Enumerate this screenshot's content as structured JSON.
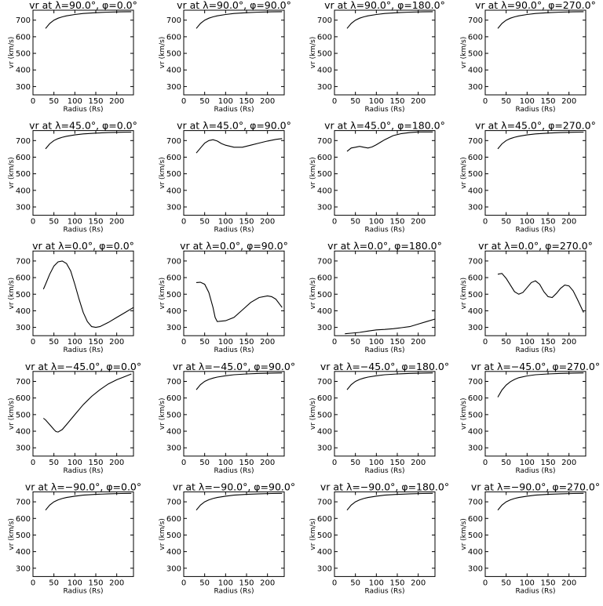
{
  "chart_data": [
    {
      "type": "line",
      "title": "vr at λ=90.0°, φ=0.0°",
      "xlabel": "Radius (Rs)",
      "ylabel": "vr (km/s)",
      "xlim": [
        0,
        240
      ],
      "ylim": [
        250,
        760
      ],
      "x": [
        30,
        40,
        50,
        60,
        70,
        80,
        100,
        120,
        150,
        180,
        210,
        235
      ],
      "y": [
        650,
        680,
        700,
        712,
        720,
        726,
        734,
        740,
        745,
        748,
        750,
        751
      ]
    },
    {
      "type": "line",
      "title": "vr at λ=90.0°, φ=90.0°",
      "xlabel": "Radius (Rs)",
      "ylabel": "vr (km/s)",
      "xlim": [
        0,
        240
      ],
      "ylim": [
        250,
        760
      ],
      "x": [
        30,
        40,
        50,
        60,
        70,
        80,
        100,
        120,
        150,
        180,
        210,
        235
      ],
      "y": [
        650,
        680,
        700,
        712,
        720,
        726,
        734,
        740,
        745,
        748,
        750,
        751
      ]
    },
    {
      "type": "line",
      "title": "vr at λ=90.0°, φ=180.0°",
      "xlabel": "Radius (Rs)",
      "ylabel": "vr (km/s)",
      "xlim": [
        0,
        240
      ],
      "ylim": [
        250,
        760
      ],
      "x": [
        30,
        40,
        50,
        60,
        70,
        80,
        100,
        120,
        150,
        180,
        210,
        235
      ],
      "y": [
        650,
        680,
        700,
        712,
        720,
        726,
        734,
        740,
        745,
        748,
        750,
        751
      ]
    },
    {
      "type": "line",
      "title": "vr at λ=90.0°, φ=270.0°",
      "xlabel": "Radius (Rs)",
      "ylabel": "vr (km/s)",
      "xlim": [
        0,
        240
      ],
      "ylim": [
        250,
        760
      ],
      "x": [
        30,
        40,
        50,
        60,
        70,
        80,
        100,
        120,
        150,
        180,
        210,
        235
      ],
      "y": [
        650,
        680,
        700,
        712,
        720,
        726,
        734,
        740,
        745,
        748,
        750,
        751
      ]
    },
    {
      "type": "line",
      "title": "vr at λ=45.0°, φ=0.0°",
      "xlabel": "Radius (Rs)",
      "ylabel": "vr (km/s)",
      "xlim": [
        0,
        240
      ],
      "ylim": [
        250,
        760
      ],
      "x": [
        30,
        40,
        50,
        60,
        70,
        80,
        100,
        120,
        150,
        180,
        210,
        235
      ],
      "y": [
        650,
        680,
        700,
        712,
        720,
        726,
        734,
        740,
        745,
        748,
        750,
        751
      ]
    },
    {
      "type": "line",
      "title": "vr at λ=45.0°, φ=90.0°",
      "xlabel": "Radius (Rs)",
      "ylabel": "vr (km/s)",
      "xlim": [
        0,
        240
      ],
      "ylim": [
        250,
        760
      ],
      "x": [
        30,
        40,
        50,
        60,
        70,
        80,
        90,
        100,
        120,
        140,
        160,
        180,
        200,
        220,
        235
      ],
      "y": [
        625,
        655,
        685,
        700,
        705,
        697,
        682,
        672,
        660,
        660,
        672,
        685,
        697,
        707,
        712
      ]
    },
    {
      "type": "line",
      "title": "vr at λ=45.0°, φ=180.0°",
      "xlabel": "Radius (Rs)",
      "ylabel": "vr (km/s)",
      "xlim": [
        0,
        240
      ],
      "ylim": [
        250,
        760
      ],
      "x": [
        30,
        40,
        50,
        60,
        70,
        80,
        90,
        100,
        110,
        120,
        140,
        160,
        180,
        200,
        220,
        235
      ],
      "y": [
        635,
        655,
        660,
        665,
        660,
        655,
        662,
        675,
        690,
        705,
        730,
        742,
        748,
        752,
        752,
        752
      ]
    },
    {
      "type": "line",
      "title": "vr at λ=45.0°, φ=270.0°",
      "xlabel": "Radius (Rs)",
      "ylabel": "vr (km/s)",
      "xlim": [
        0,
        240
      ],
      "ylim": [
        250,
        760
      ],
      "x": [
        30,
        40,
        50,
        60,
        70,
        80,
        100,
        120,
        150,
        180,
        210,
        235
      ],
      "y": [
        650,
        680,
        700,
        712,
        720,
        726,
        734,
        740,
        745,
        748,
        750,
        751
      ]
    },
    {
      "type": "line",
      "title": "vr at λ=0.0°, φ=0.0°",
      "xlabel": "Radius (Rs)",
      "ylabel": "vr (km/s)",
      "xlim": [
        0,
        240
      ],
      "ylim": [
        250,
        760
      ],
      "x": [
        25,
        30,
        40,
        50,
        60,
        70,
        80,
        90,
        100,
        110,
        120,
        130,
        140,
        150,
        160,
        180,
        200,
        220,
        240
      ],
      "y": [
        530,
        560,
        620,
        670,
        695,
        700,
        685,
        640,
        560,
        470,
        390,
        335,
        305,
        300,
        305,
        330,
        360,
        390,
        420
      ]
    },
    {
      "type": "line",
      "title": "vr at λ=0.0°, φ=90.0°",
      "xlabel": "Radius (Rs)",
      "ylabel": "vr (km/s)",
      "xlim": [
        0,
        240
      ],
      "ylim": [
        250,
        760
      ],
      "x": [
        30,
        40,
        50,
        60,
        70,
        75,
        80,
        100,
        120,
        140,
        160,
        180,
        200,
        210,
        220,
        235
      ],
      "y": [
        570,
        572,
        560,
        510,
        420,
        360,
        335,
        340,
        360,
        405,
        450,
        480,
        490,
        485,
        470,
        420
      ]
    },
    {
      "type": "line",
      "title": "vr at λ=0.0°, φ=180.0°",
      "xlabel": "Radius (Rs)",
      "ylabel": "vr (km/s)",
      "xlim": [
        0,
        240
      ],
      "ylim": [
        250,
        760
      ],
      "x": [
        25,
        40,
        60,
        80,
        100,
        120,
        140,
        160,
        180,
        200,
        220,
        240
      ],
      "y": [
        262,
        265,
        270,
        278,
        285,
        288,
        292,
        298,
        305,
        320,
        335,
        350
      ]
    },
    {
      "type": "line",
      "title": "vr at λ=0.0°, φ=270.0°",
      "xlabel": "Radius (Rs)",
      "ylabel": "vr (km/s)",
      "xlim": [
        0,
        240
      ],
      "ylim": [
        250,
        760
      ],
      "x": [
        30,
        40,
        50,
        60,
        70,
        80,
        90,
        100,
        110,
        120,
        130,
        140,
        150,
        160,
        170,
        180,
        190,
        200,
        210,
        220,
        235
      ],
      "y": [
        620,
        625,
        595,
        555,
        515,
        500,
        510,
        540,
        570,
        580,
        560,
        515,
        485,
        480,
        505,
        535,
        555,
        550,
        520,
        470,
        390
      ]
    },
    {
      "type": "line",
      "title": "vr at λ=−45.0°, φ=0.0°",
      "xlabel": "Radius (Rs)",
      "ylabel": "vr (km/s)",
      "xlim": [
        0,
        240
      ],
      "ylim": [
        250,
        760
      ],
      "x": [
        25,
        30,
        40,
        50,
        55,
        60,
        70,
        80,
        100,
        120,
        140,
        160,
        180,
        200,
        220,
        235
      ],
      "y": [
        478,
        468,
        440,
        410,
        398,
        395,
        410,
        440,
        500,
        560,
        610,
        650,
        685,
        710,
        730,
        745
      ]
    },
    {
      "type": "line",
      "title": "vr at λ=−45.0°, φ=90.0°",
      "xlabel": "Radius (Rs)",
      "ylabel": "vr (km/s)",
      "xlim": [
        0,
        240
      ],
      "ylim": [
        250,
        760
      ],
      "x": [
        30,
        40,
        50,
        60,
        70,
        80,
        100,
        120,
        150,
        180,
        210,
        235
      ],
      "y": [
        650,
        680,
        700,
        712,
        720,
        726,
        734,
        740,
        745,
        748,
        750,
        751
      ]
    },
    {
      "type": "line",
      "title": "vr at λ=−45.0°, φ=180.0°",
      "xlabel": "Radius (Rs)",
      "ylabel": "vr (km/s)",
      "xlim": [
        0,
        240
      ],
      "ylim": [
        250,
        760
      ],
      "x": [
        30,
        40,
        50,
        60,
        70,
        80,
        100,
        120,
        150,
        180,
        210,
        235
      ],
      "y": [
        650,
        680,
        700,
        712,
        720,
        726,
        734,
        740,
        745,
        748,
        750,
        751
      ]
    },
    {
      "type": "line",
      "title": "vr at λ=−45.0°, φ=270.0°",
      "xlabel": "Radius (Rs)",
      "ylabel": "vr (km/s)",
      "xlim": [
        0,
        240
      ],
      "ylim": [
        250,
        760
      ],
      "x": [
        30,
        40,
        50,
        60,
        70,
        80,
        100,
        120,
        150,
        180,
        210,
        235
      ],
      "y": [
        605,
        648,
        678,
        698,
        712,
        722,
        733,
        740,
        745,
        748,
        750,
        751
      ]
    },
    {
      "type": "line",
      "title": "vr at λ=−90.0°, φ=0.0°",
      "xlabel": "Radius (Rs)",
      "ylabel": "vr (km/s)",
      "xlim": [
        0,
        240
      ],
      "ylim": [
        250,
        760
      ],
      "x": [
        30,
        40,
        50,
        60,
        70,
        80,
        100,
        120,
        150,
        180,
        210,
        235
      ],
      "y": [
        650,
        680,
        700,
        712,
        720,
        726,
        734,
        740,
        745,
        748,
        750,
        751
      ]
    },
    {
      "type": "line",
      "title": "vr at λ=−90.0°, φ=90.0°",
      "xlabel": "Radius (Rs)",
      "ylabel": "vr (km/s)",
      "xlim": [
        0,
        240
      ],
      "ylim": [
        250,
        760
      ],
      "x": [
        30,
        40,
        50,
        60,
        70,
        80,
        100,
        120,
        150,
        180,
        210,
        235
      ],
      "y": [
        650,
        680,
        700,
        712,
        720,
        726,
        734,
        740,
        745,
        748,
        750,
        751
      ]
    },
    {
      "type": "line",
      "title": "vr at λ=−90.0°, φ=180.0°",
      "xlabel": "Radius (Rs)",
      "ylabel": "vr (km/s)",
      "xlim": [
        0,
        240
      ],
      "ylim": [
        250,
        760
      ],
      "x": [
        30,
        40,
        50,
        60,
        70,
        80,
        100,
        120,
        150,
        180,
        210,
        235
      ],
      "y": [
        650,
        680,
        700,
        712,
        720,
        726,
        734,
        740,
        745,
        748,
        750,
        751
      ]
    },
    {
      "type": "line",
      "title": "vr at λ=−90.0°, φ=270.0°",
      "xlabel": "Radius (Rs)",
      "ylabel": "vr (km/s)",
      "xlim": [
        0,
        240
      ],
      "ylim": [
        250,
        760
      ],
      "x": [
        30,
        40,
        50,
        60,
        70,
        80,
        100,
        120,
        150,
        180,
        210,
        235
      ],
      "y": [
        650,
        680,
        700,
        712,
        720,
        726,
        734,
        740,
        745,
        748,
        750,
        751
      ]
    }
  ],
  "axes": {
    "x_ticks": [
      0,
      50,
      100,
      150,
      200
    ],
    "y_ticks": [
      300,
      400,
      500,
      600,
      700
    ]
  }
}
